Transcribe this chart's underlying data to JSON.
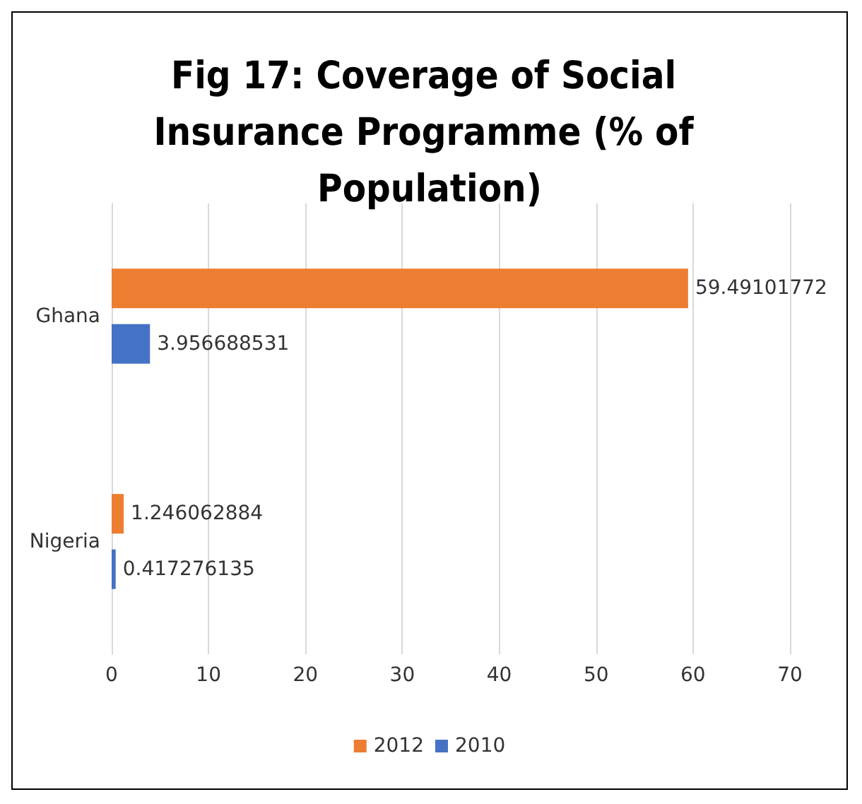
{
  "chart_data": {
    "type": "bar",
    "orientation": "horizontal",
    "title": "Fig 17: Coverage of Social Insurance Programme (% of Population)",
    "categories": [
      "Ghana",
      "Nigeria"
    ],
    "series": [
      {
        "name": "2012",
        "color": "#ed7d31",
        "values": [
          59.49101772,
          1.246062884
        ]
      },
      {
        "name": "2010",
        "color": "#4472c4",
        "values": [
          3.956688531,
          0.417276135
        ]
      }
    ],
    "xlim": [
      0,
      70
    ],
    "xticks": [
      0,
      10,
      20,
      30,
      40,
      50,
      60,
      70
    ],
    "grid": "x",
    "legend": "bottom",
    "data_labels": true
  }
}
